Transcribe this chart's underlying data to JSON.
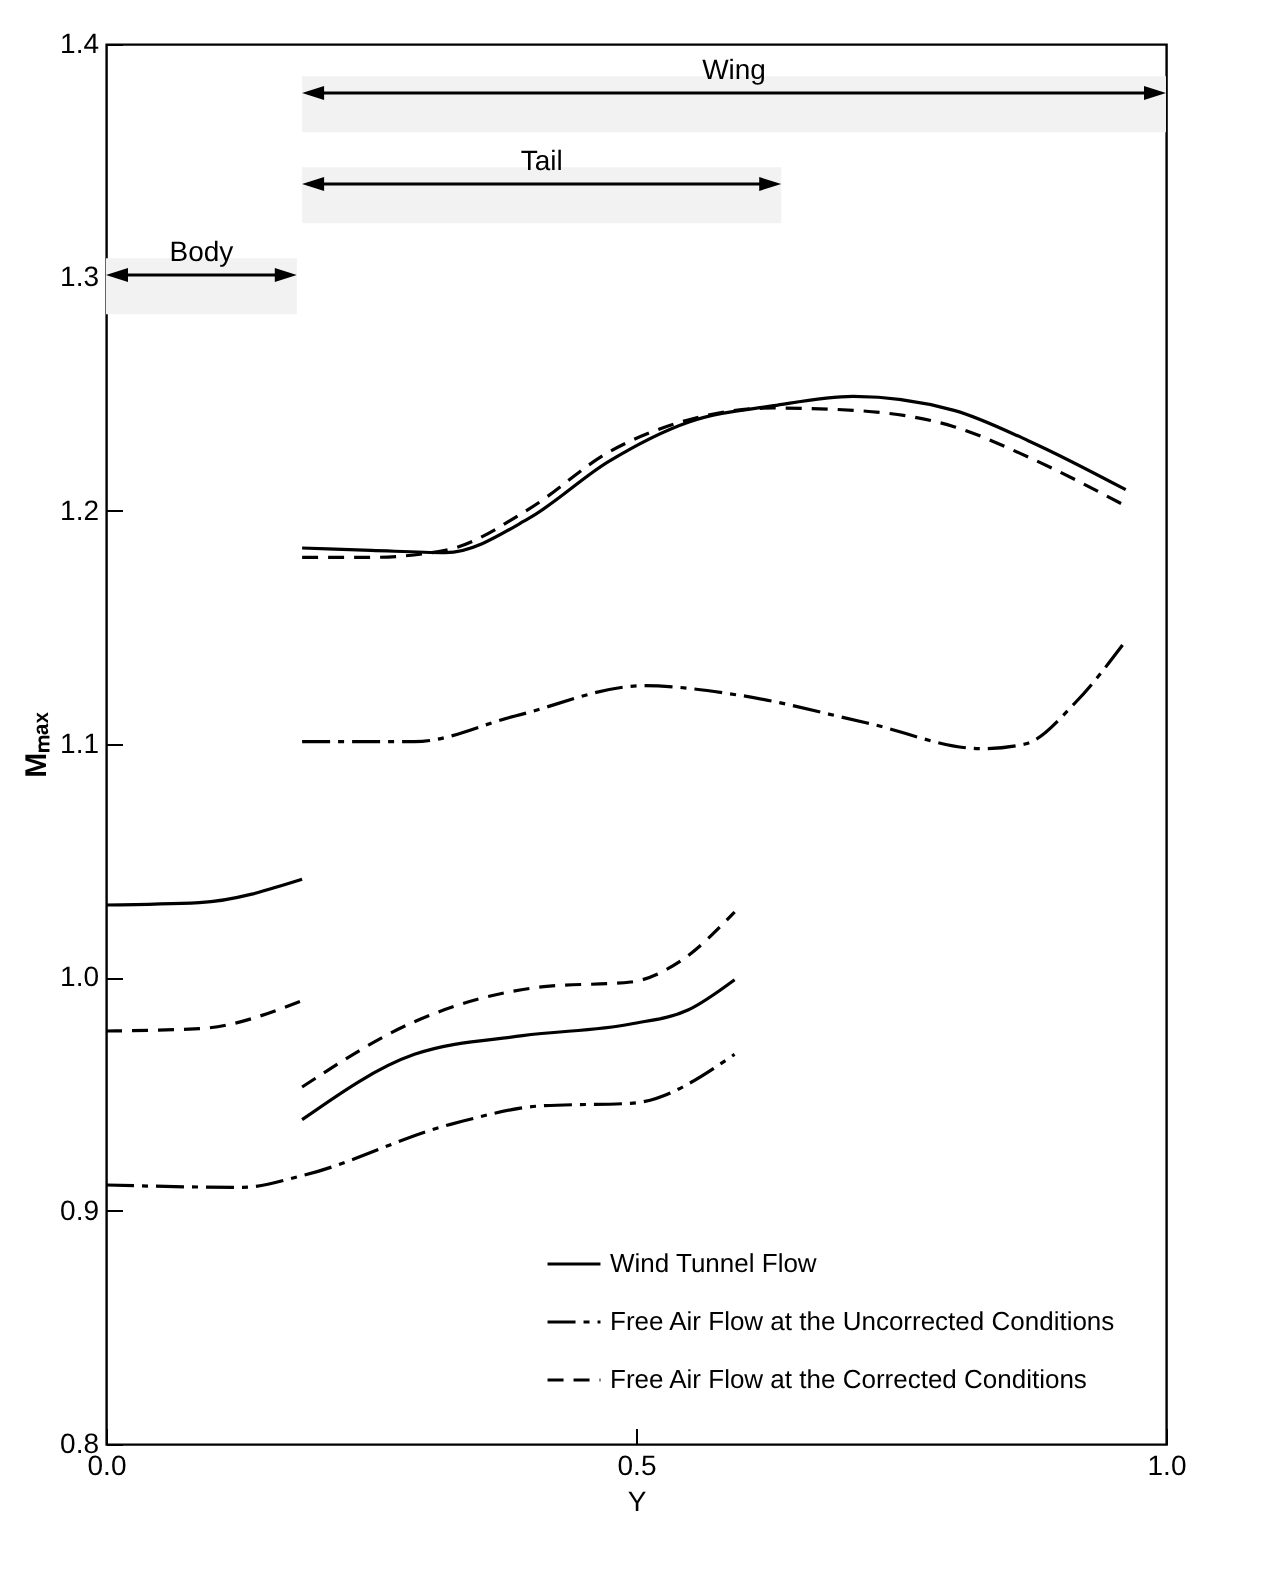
{
  "chart_data": {
    "type": "line",
    "xlabel": "Y",
    "ylabel": "Mₘₐₓ",
    "xlim": [
      0,
      1
    ],
    "xticks": [
      {
        "value": 0,
        "label": "0.0"
      },
      {
        "value": 0.5,
        "label": "0.5"
      },
      {
        "value": 1,
        "label": "1.0"
      }
    ],
    "ylim": [
      0.8,
      1.4
    ],
    "yticks": [
      {
        "value": 0.8,
        "label": "0.8"
      },
      {
        "value": 0.9,
        "label": "0.9"
      },
      {
        "value": 1,
        "label": "1.0"
      },
      {
        "value": 1.1,
        "label": "1.1"
      },
      {
        "value": 1.2,
        "label": "1.2"
      },
      {
        "value": 1.3,
        "label": "1.3"
      },
      {
        "value": 1.4,
        "label": "1.4"
      }
    ],
    "grid": false,
    "legend": "bottom right",
    "marker": "none",
    "bands": [
      {
        "axis": "x",
        "from": 0.185,
        "to": 1.0,
        "label": "Wing",
        "color": "#f2f2f2"
      },
      {
        "axis": "x",
        "from": 0.185,
        "to": 0.637,
        "label": "Tail",
        "color": "#f2f2f2"
      },
      {
        "axis": "x",
        "from": 0,
        "to": 0.18,
        "label": "Body",
        "color": "#f2f2f2"
      }
    ],
    "series": [
      {
        "name": "Wind Tunnel Flow",
        "color": "#000000",
        "line_style": "solid",
        "x": [
          0.185,
          0.25,
          0.32,
          0.4,
          0.474,
          0.55,
          0.63,
          0.705,
          0.8,
          0.87,
          0.962
        ],
        "values": [
          1.184,
          1.183,
          1.182,
          1.197,
          1.221,
          1.238,
          1.245,
          1.249,
          1.243,
          1.23,
          1.209
        ]
      },
      {
        "name": "Free Air Flow at the Uncorrected Conditions",
        "color": "#000000",
        "line_style": "dashdot",
        "x": [
          0.185,
          0.291,
          0.386,
          0.508,
          0.596,
          0.718,
          0.826,
          0.867,
          0.915,
          0.96
        ],
        "values": [
          1.101,
          1.101,
          1.112,
          1.125,
          1.121,
          1.109,
          1.098,
          1.1,
          1.118,
          1.143
        ]
      },
      {
        "name": "Free Air Flow at the Corrected Conditions",
        "color": "#000000",
        "line_style": "dashed",
        "x": [
          0.185,
          0.25,
          0.32,
          0.4,
          0.474,
          0.55,
          0.63,
          0.705,
          0.8,
          0.87,
          0.962
        ],
        "values": [
          1.18,
          1.18,
          1.183,
          1.201,
          1.225,
          1.239,
          1.244,
          1.243,
          1.236,
          1.223,
          1.202
        ]
      },
      {
        "color": "#000000",
        "line_style": "solid",
        "x": [
          0,
          0.088,
          0.185
        ],
        "values": [
          1.031,
          1.032,
          1.042
        ]
      },
      {
        "color": "#000000",
        "line_style": "solid",
        "x": [
          0.185,
          0.291,
          0.393,
          0.495,
          0.549,
          0.593
        ],
        "values": [
          0.939,
          0.967,
          0.975,
          0.98,
          0.986,
          0.999
        ]
      },
      {
        "color": "#000000",
        "line_style": "dashdot",
        "x": [
          0,
          0.129,
          0.185,
          0.325,
          0.413,
          0.495,
          0.593
        ],
        "values": [
          0.911,
          0.91,
          0.915,
          0.937,
          0.945,
          0.946,
          0.967
        ]
      },
      {
        "color": "#000000",
        "line_style": "dashed",
        "x": [
          0,
          0.088,
          0.185
        ],
        "values": [
          0.977,
          0.978,
          0.99
        ]
      },
      {
        "color": "#000000",
        "line_style": "dashed",
        "x": [
          0.185,
          0.291,
          0.413,
          0.495,
          0.542,
          0.593
        ],
        "values": [
          0.953,
          0.981,
          0.996,
          0.998,
          1.007,
          1.028
        ]
      }
    ]
  }
}
